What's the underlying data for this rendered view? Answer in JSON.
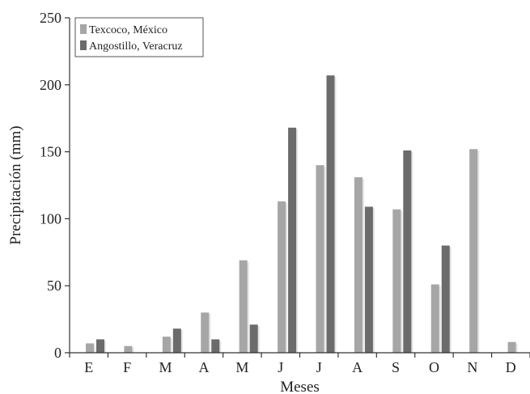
{
  "chart_data": {
    "type": "bar",
    "title": "",
    "xlabel": "Meses",
    "ylabel": "Precipitación (mm)",
    "categories": [
      "E",
      "F",
      "M",
      "A",
      "M",
      "J",
      "J",
      "A",
      "S",
      "O",
      "N",
      "D"
    ],
    "series": [
      {
        "name": "Texcoco, México",
        "color": "#a6a6a6",
        "values": [
          7,
          5,
          12,
          30,
          69,
          113,
          140,
          131,
          107,
          51,
          152,
          8
        ]
      },
      {
        "name": "Angostillo, Veracruz",
        "color": "#6b6b6b",
        "values": [
          10,
          0,
          18,
          10,
          21,
          168,
          207,
          109,
          151,
          80,
          0,
          0
        ]
      }
    ],
    "ylim": [
      0,
      250
    ],
    "yticks": [
      0,
      50,
      100,
      150,
      200,
      250
    ],
    "grid": false,
    "legend_position": "top-left"
  }
}
